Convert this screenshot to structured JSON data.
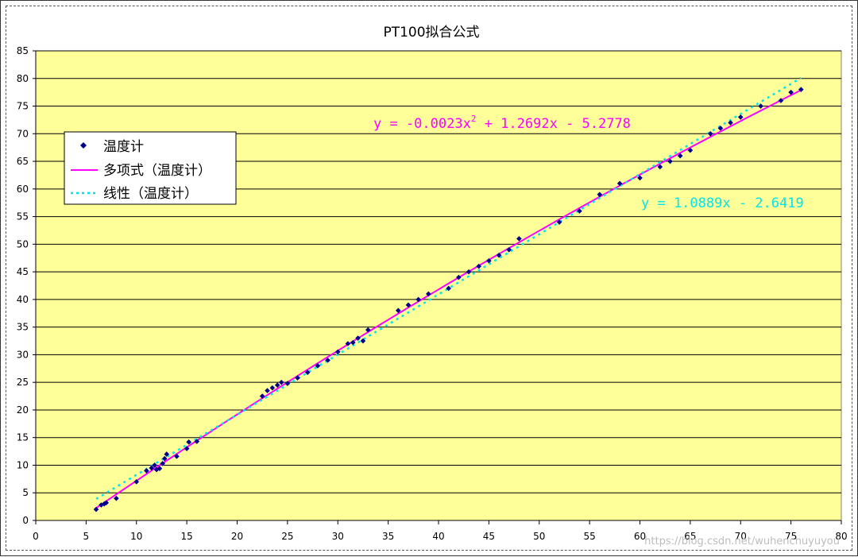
{
  "chart_data": {
    "type": "scatter",
    "title": "PT100拟合公式",
    "xlim": [
      0,
      80
    ],
    "ylim": [
      0,
      85
    ],
    "x_ticks": [
      0,
      5,
      10,
      15,
      20,
      25,
      30,
      35,
      40,
      45,
      50,
      55,
      60,
      65,
      70,
      75,
      80
    ],
    "y_ticks": [
      0,
      5,
      10,
      15,
      20,
      25,
      30,
      35,
      40,
      45,
      50,
      55,
      60,
      65,
      70,
      75,
      80,
      85
    ],
    "grid": "horizontal",
    "legend_position": "left",
    "plot_background": "#FFFF99",
    "series": [
      {
        "name": "温度计",
        "kind": "scatter",
        "marker": "diamond",
        "color": "#00008B",
        "points": [
          [
            6,
            2
          ],
          [
            6.5,
            2.8
          ],
          [
            6.8,
            3
          ],
          [
            7,
            3.2
          ],
          [
            8,
            4
          ],
          [
            10,
            7
          ],
          [
            11,
            9
          ],
          [
            11.5,
            9.5
          ],
          [
            11.8,
            10
          ],
          [
            12,
            9.2
          ],
          [
            12.3,
            9.4
          ],
          [
            12.6,
            10.3
          ],
          [
            12.8,
            11.2
          ],
          [
            13,
            12
          ],
          [
            14,
            11.6
          ],
          [
            15,
            13
          ],
          [
            15.2,
            14.2
          ],
          [
            16,
            14.3
          ],
          [
            22.5,
            22.5
          ],
          [
            23,
            23.5
          ],
          [
            23.5,
            24
          ],
          [
            24,
            24.5
          ],
          [
            24.4,
            25
          ],
          [
            25,
            24.8
          ],
          [
            26,
            25.8
          ],
          [
            27,
            26.8
          ],
          [
            28,
            28
          ],
          [
            29,
            29
          ],
          [
            30,
            30.5
          ],
          [
            31,
            32
          ],
          [
            31.5,
            32.2
          ],
          [
            32,
            33
          ],
          [
            32.5,
            32.5
          ],
          [
            33,
            34.5
          ],
          [
            36,
            38
          ],
          [
            37,
            39
          ],
          [
            38,
            40
          ],
          [
            39,
            41
          ],
          [
            41,
            42
          ],
          [
            42,
            44
          ],
          [
            43,
            45
          ],
          [
            44,
            46
          ],
          [
            45,
            47
          ],
          [
            46,
            48
          ],
          [
            47,
            49
          ],
          [
            48,
            51
          ],
          [
            52,
            54
          ],
          [
            54,
            56
          ],
          [
            56,
            59
          ],
          [
            58,
            61
          ],
          [
            60,
            62
          ],
          [
            62,
            64
          ],
          [
            63,
            65
          ],
          [
            64,
            66
          ],
          [
            65,
            67
          ],
          [
            67,
            70
          ],
          [
            68,
            71
          ],
          [
            69,
            72
          ],
          [
            70,
            73
          ],
          [
            72,
            75
          ],
          [
            74,
            76
          ],
          [
            75,
            77.5
          ],
          [
            76,
            78
          ]
        ]
      },
      {
        "name": "多项式（温度计）",
        "kind": "poly2",
        "color": "#FF00FF",
        "coefficients": [
          -0.0023,
          1.2692,
          -5.2778
        ],
        "x_range": [
          6,
          76
        ]
      },
      {
        "name": "线性（温度计）",
        "kind": "linear",
        "color": "#00E5EE",
        "coefficients": [
          1.0889,
          -2.6419
        ],
        "x_range": [
          6,
          76
        ]
      }
    ],
    "annotations": [
      {
        "text": "y = -0.0023x",
        "superscript": "2",
        "suffix": " + 1.2692x - 5.2778",
        "color": "#FF00FF"
      },
      {
        "text": "y = 1.0889x - 2.6419",
        "color": "#00E5EE"
      }
    ],
    "watermark": "https://blog.csdn.net/wuhenchuyuyou"
  }
}
